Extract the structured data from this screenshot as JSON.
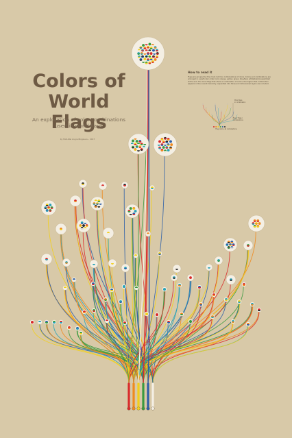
{
  "poster": {
    "title": "Colors of\nWorld Flags",
    "subtitle": "An exploration of color combinations\nused in world flags",
    "credit": "by Shih-Wei Ang & Bingxuan... 2017",
    "howto_title": "How to read it",
    "howto_body": "Flags are grouped by the most common combinations of colors. Colors and combinations are arranged in a particular order (red, orange, yellow, green, blue/teal, white/black) assembled at the end. The more flags that share a combination of colors, the higher that combination appears in the overall hierarchy, separated into three and dimensional layers are included.",
    "legend_top_label": "More flags\nin combination",
    "legend_bottom_label": "Fewer flags /\ncombinations",
    "legend_axis_label": "Flag colors, all combinations"
  },
  "colors": {
    "background": "#d8c9a8",
    "red": "#d92b2b",
    "orange": "#ef8a1e",
    "yellow": "#f2cf1b",
    "green": "#3a9a3f",
    "blue": "#2e5fa8",
    "teal": "#2aa3b8",
    "white": "#f4efe4",
    "black": "#2a2a2a"
  }
}
